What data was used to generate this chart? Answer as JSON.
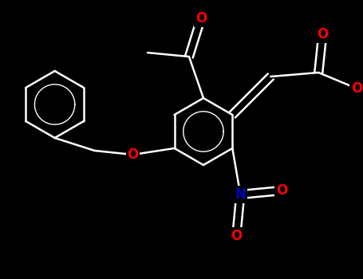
{
  "bg_color": "#000000",
  "bond_color": "#ffffff",
  "o_color": "#ff0000",
  "n_color": "#0000bb",
  "lw": 1.8,
  "figsize": [
    4.55,
    3.5
  ],
  "dpi": 100,
  "fs": 12,
  "xlim": [
    0,
    455
  ],
  "ylim": [
    0,
    350
  ]
}
